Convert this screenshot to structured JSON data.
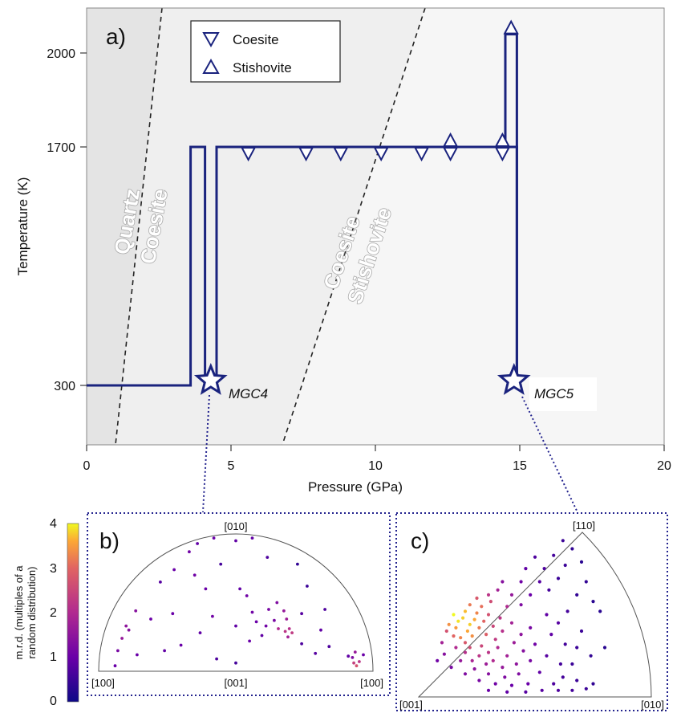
{
  "chart_data": [
    {
      "type": "line",
      "panel_label": "a)",
      "xlabel": "Pressure (GPa)",
      "ylabel": "Temperature (K)",
      "xlim": [
        0,
        20
      ],
      "xticks": [
        "0",
        "5",
        "10",
        "15",
        "20"
      ],
      "ytick_labels": [
        "300",
        "1700",
        "2000"
      ],
      "field_labels": [
        {
          "lines": [
            "Quartz",
            "Coesite"
          ]
        },
        {
          "lines": [
            "Coesite",
            "Stishovite"
          ]
        }
      ],
      "legend": {
        "placement": "top",
        "entries": [
          "Coesite",
          "Stishovite"
        ]
      },
      "series": [
        {
          "name": "MGC4",
          "points": [
            [
              0,
              300
            ],
            [
              3.6,
              300
            ],
            [
              3.6,
              1700
            ],
            [
              4.1,
              1700
            ],
            [
              4.1,
              300
            ],
            [
              4.5,
              300
            ],
            [
              4.5,
              1700
            ],
            [
              14.9,
              1700
            ],
            [
              14.9,
              300
            ]
          ]
        },
        {
          "name": "MGC5",
          "points": [
            [
              14.5,
              1700
            ],
            [
              14.5,
              2060
            ],
            [
              14.9,
              2060
            ],
            [
              14.9,
              300
            ]
          ]
        }
      ],
      "coesite_markers": [
        [
          5.6,
          1700
        ],
        [
          7.6,
          1700
        ],
        [
          8.8,
          1700
        ],
        [
          10.2,
          1700
        ],
        [
          11.6,
          1700
        ],
        [
          12.6,
          1700
        ],
        [
          14.4,
          1700
        ]
      ],
      "stishovite_markers": [
        [
          12.6,
          1700
        ],
        [
          14.4,
          1700
        ],
        [
          14.7,
          2060
        ]
      ],
      "endpoints": [
        {
          "label": "MGC4",
          "x": 4.3,
          "y": 300
        },
        {
          "label": "MGC5",
          "x": 14.8,
          "y": 300
        }
      ]
    },
    {
      "type": "scatter",
      "panel_label": "b)",
      "pole_labels": [
        "[010]",
        "[100]",
        "[001]",
        "[100]"
      ],
      "colorbar": {
        "label_lines": [
          "m.r.d. (multiples of a",
          "random distribution)"
        ],
        "ticks": [
          "0",
          "1",
          "2",
          "3",
          "4"
        ],
        "range": [
          0,
          4
        ]
      },
      "points": [
        [
          -0.28,
          0.93,
          0.9
        ],
        [
          -0.16,
          0.97,
          1.0
        ],
        [
          0.0,
          0.95,
          0.9
        ],
        [
          0.12,
          0.97,
          0.9
        ],
        [
          -0.34,
          0.87,
          1.1
        ],
        [
          -0.45,
          0.74,
          1.0
        ],
        [
          -0.3,
          0.7,
          1.1
        ],
        [
          -0.11,
          0.78,
          0.6
        ],
        [
          0.23,
          0.83,
          0.7
        ],
        [
          0.45,
          0.78,
          0.4
        ],
        [
          0.52,
          0.62,
          0.5
        ],
        [
          -0.73,
          0.44,
          1.4
        ],
        [
          -0.62,
          0.38,
          1.0
        ],
        [
          -0.46,
          0.42,
          1.0
        ],
        [
          -0.17,
          0.4,
          1.1
        ],
        [
          0.0,
          0.33,
          0.9
        ],
        [
          0.03,
          0.6,
          0.9
        ],
        [
          0.08,
          0.55,
          1.1
        ],
        [
          0.12,
          0.43,
          1.1
        ],
        [
          0.15,
          0.36,
          1.0
        ],
        [
          0.24,
          0.45,
          1.2
        ],
        [
          0.3,
          0.5,
          1.3
        ],
        [
          0.35,
          0.44,
          1.6
        ],
        [
          0.37,
          0.38,
          1.7
        ],
        [
          0.39,
          0.31,
          2.1
        ],
        [
          0.41,
          0.28,
          2.3
        ],
        [
          0.36,
          0.29,
          2.2
        ],
        [
          0.31,
          0.31,
          2.0
        ],
        [
          0.38,
          0.25,
          1.8
        ],
        [
          0.28,
          0.37,
          1.2
        ],
        [
          0.19,
          0.26,
          0.9
        ],
        [
          0.22,
          0.33,
          1.1
        ],
        [
          0.48,
          0.42,
          0.8
        ],
        [
          0.62,
          0.3,
          0.9
        ],
        [
          0.68,
          0.18,
          0.7
        ],
        [
          -0.83,
          0.24,
          1.6
        ],
        [
          -0.86,
          0.15,
          1.2
        ],
        [
          -0.78,
          0.3,
          1.4
        ],
        [
          -0.8,
          0.33,
          1.5
        ],
        [
          -0.72,
          0.12,
          1.0
        ],
        [
          -0.52,
          0.15,
          0.9
        ],
        [
          -0.4,
          0.19,
          1.0
        ],
        [
          -0.26,
          0.28,
          0.9
        ],
        [
          -0.14,
          0.09,
          0.7
        ],
        [
          0.0,
          0.06,
          0.6
        ],
        [
          0.1,
          0.22,
          1.0
        ],
        [
          0.48,
          0.2,
          0.7
        ],
        [
          0.58,
          0.13,
          0.8
        ],
        [
          0.85,
          0.1,
          1.3
        ],
        [
          0.86,
          0.06,
          2.4
        ],
        [
          0.88,
          0.04,
          2.7
        ],
        [
          0.9,
          0.07,
          2.2
        ],
        [
          0.87,
          0.14,
          1.6
        ],
        [
          0.93,
          0.12,
          1.0
        ],
        [
          0.82,
          0.11,
          0.9
        ],
        [
          -0.88,
          0.04,
          1.0
        ],
        [
          0.65,
          0.45,
          0.7
        ],
        [
          -0.55,
          0.65,
          0.8
        ],
        [
          -0.22,
          0.6,
          1.0
        ]
      ]
    },
    {
      "type": "scatter",
      "panel_label": "c)",
      "pole_labels": [
        "[110]",
        "[001]",
        "[010]"
      ],
      "points": [
        [
          0.15,
          0.5,
          4.0
        ],
        [
          0.17,
          0.46,
          3.9
        ],
        [
          0.19,
          0.48,
          3.8
        ],
        [
          0.2,
          0.52,
          3.7
        ],
        [
          0.22,
          0.44,
          3.8
        ],
        [
          0.24,
          0.47,
          3.6
        ],
        [
          0.16,
          0.42,
          3.5
        ],
        [
          0.21,
          0.4,
          3.6
        ],
        [
          0.25,
          0.51,
          3.3
        ],
        [
          0.26,
          0.42,
          3.2
        ],
        [
          0.23,
          0.37,
          3.4
        ],
        [
          0.18,
          0.36,
          3.3
        ],
        [
          0.28,
          0.46,
          3.0
        ],
        [
          0.27,
          0.55,
          3.1
        ],
        [
          0.22,
          0.56,
          3.2
        ],
        [
          0.29,
          0.38,
          2.9
        ],
        [
          0.13,
          0.44,
          3.4
        ],
        [
          0.2,
          0.33,
          2.8
        ],
        [
          0.3,
          0.5,
          2.7
        ],
        [
          0.31,
          0.58,
          2.6
        ],
        [
          0.25,
          0.6,
          2.8
        ],
        [
          0.32,
          0.43,
          2.5
        ],
        [
          0.33,
          0.35,
          2.3
        ],
        [
          0.27,
          0.31,
          2.5
        ],
        [
          0.35,
          0.48,
          2.2
        ],
        [
          0.36,
          0.4,
          2.1
        ],
        [
          0.34,
          0.3,
          2.0
        ],
        [
          0.3,
          0.27,
          2.2
        ],
        [
          0.22,
          0.3,
          2.6
        ],
        [
          0.15,
          0.37,
          3.0
        ],
        [
          0.12,
          0.4,
          2.7
        ],
        [
          0.38,
          0.55,
          2.0
        ],
        [
          0.4,
          0.45,
          1.8
        ],
        [
          0.41,
          0.33,
          1.7
        ],
        [
          0.38,
          0.25,
          1.8
        ],
        [
          0.32,
          0.22,
          2.0
        ],
        [
          0.26,
          0.25,
          2.2
        ],
        [
          0.2,
          0.27,
          2.1
        ],
        [
          0.44,
          0.38,
          1.5
        ],
        [
          0.45,
          0.28,
          1.4
        ],
        [
          0.42,
          0.2,
          1.5
        ],
        [
          0.36,
          0.18,
          1.6
        ],
        [
          0.29,
          0.2,
          1.7
        ],
        [
          0.23,
          0.22,
          1.9
        ],
        [
          0.16,
          0.3,
          2.0
        ],
        [
          0.1,
          0.33,
          1.8
        ],
        [
          0.48,
          0.42,
          1.2
        ],
        [
          0.5,
          0.32,
          1.1
        ],
        [
          0.48,
          0.22,
          1.2
        ],
        [
          0.43,
          0.14,
          1.3
        ],
        [
          0.37,
          0.12,
          1.3
        ],
        [
          0.3,
          0.14,
          1.4
        ],
        [
          0.24,
          0.17,
          1.5
        ],
        [
          0.18,
          0.22,
          1.6
        ],
        [
          0.11,
          0.26,
          1.4
        ],
        [
          0.52,
          0.15,
          0.9
        ],
        [
          0.55,
          0.25,
          0.8
        ],
        [
          0.47,
          0.08,
          1.0
        ],
        [
          0.4,
          0.07,
          1.0
        ],
        [
          0.33,
          0.08,
          1.1
        ],
        [
          0.26,
          0.1,
          1.2
        ],
        [
          0.2,
          0.14,
          1.3
        ],
        [
          0.14,
          0.18,
          1.2
        ],
        [
          0.08,
          0.22,
          1.1
        ],
        [
          0.58,
          0.08,
          0.7
        ],
        [
          0.62,
          0.12,
          0.6
        ],
        [
          0.6,
          0.04,
          0.7
        ],
        [
          0.53,
          0.04,
          0.8
        ],
        [
          0.46,
          0.03,
          0.8
        ],
        [
          0.38,
          0.03,
          0.9
        ],
        [
          0.3,
          0.04,
          1.0
        ],
        [
          0.68,
          0.1,
          0.5
        ],
        [
          0.72,
          0.05,
          0.5
        ],
        [
          0.75,
          0.08,
          0.4
        ],
        [
          0.66,
          0.04,
          0.6
        ],
        [
          0.56,
          0.65,
          0.6
        ],
        [
          0.6,
          0.72,
          0.5
        ],
        [
          0.63,
          0.8,
          0.5
        ],
        [
          0.58,
          0.86,
          0.6
        ],
        [
          0.66,
          0.9,
          0.4
        ],
        [
          0.54,
          0.78,
          0.7
        ],
        [
          0.68,
          0.62,
          0.4
        ],
        [
          0.72,
          0.7,
          0.4
        ],
        [
          0.7,
          0.82,
          0.3
        ],
        [
          0.62,
          0.95,
          0.5
        ],
        [
          0.52,
          0.7,
          0.8
        ],
        [
          0.48,
          0.62,
          1.0
        ],
        [
          0.44,
          0.56,
          1.3
        ],
        [
          0.75,
          0.58,
          0.3
        ],
        [
          0.78,
          0.52,
          0.3
        ],
        [
          0.64,
          0.52,
          0.6
        ],
        [
          0.6,
          0.45,
          0.8
        ],
        [
          0.55,
          0.5,
          0.9
        ],
        [
          0.57,
          0.38,
          0.9
        ],
        [
          0.63,
          0.32,
          0.6
        ],
        [
          0.7,
          0.4,
          0.5
        ],
        [
          0.68,
          0.3,
          0.5
        ],
        [
          0.74,
          0.25,
          0.4
        ],
        [
          0.8,
          0.3,
          0.3
        ],
        [
          0.66,
          0.2,
          0.5
        ],
        [
          0.61,
          0.2,
          0.6
        ],
        [
          0.34,
          0.65,
          1.8
        ],
        [
          0.4,
          0.62,
          1.6
        ],
        [
          0.3,
          0.62,
          2.2
        ],
        [
          0.36,
          0.7,
          1.4
        ],
        [
          0.44,
          0.7,
          1.1
        ],
        [
          0.5,
          0.85,
          0.7
        ],
        [
          0.46,
          0.78,
          0.9
        ]
      ]
    }
  ]
}
